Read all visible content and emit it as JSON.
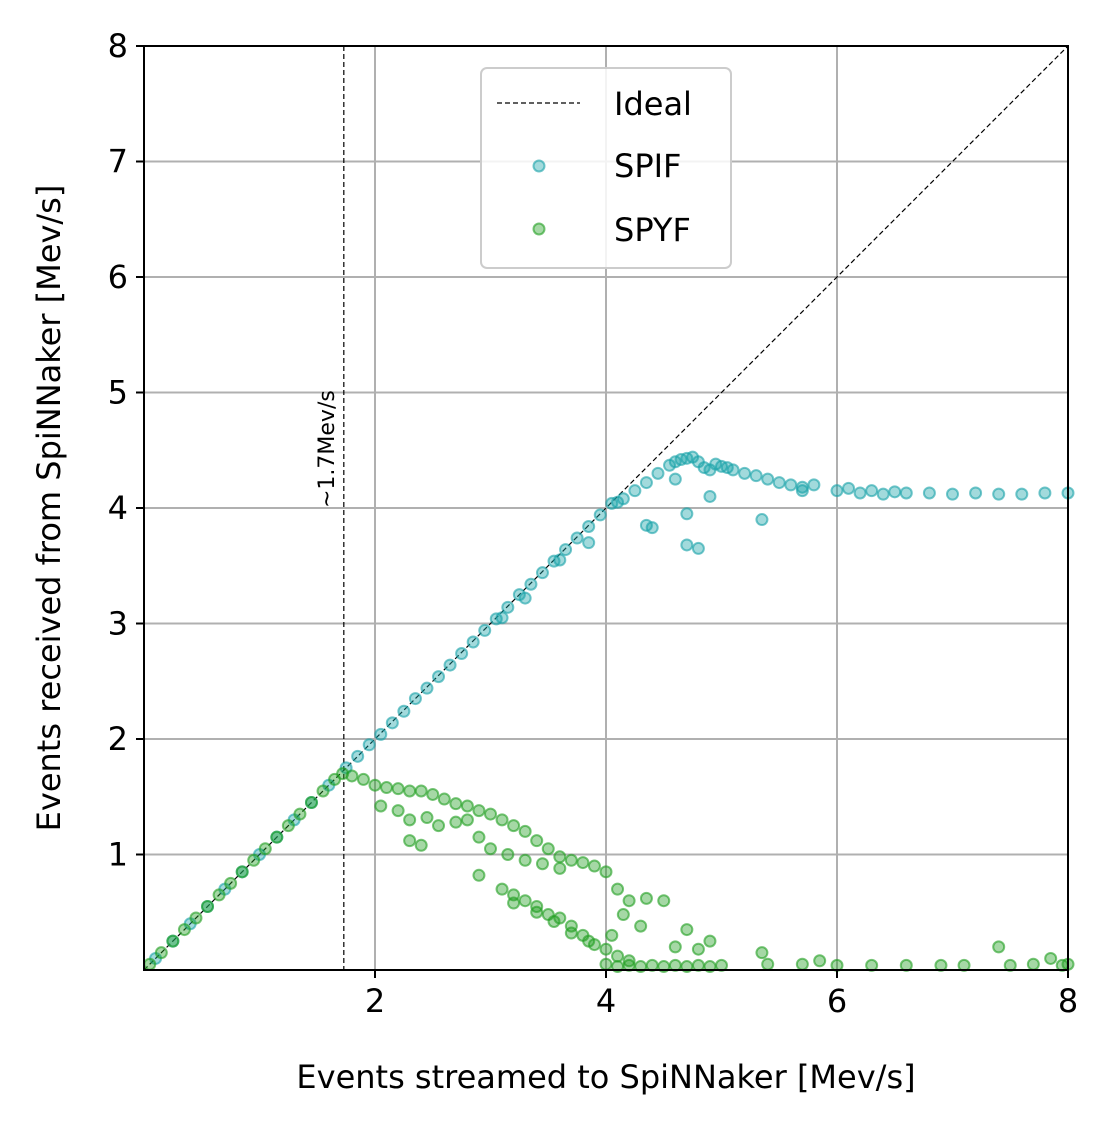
{
  "chart_data": {
    "type": "scatter",
    "title": "",
    "xlabel": "Events streamed to SpiNNaker [Mev/s]",
    "ylabel": "Events received from SpiNNaker [Mev/s]",
    "xlim": [
      0,
      8
    ],
    "ylim": [
      0,
      8
    ],
    "x_ticks": [
      2,
      4,
      6,
      8
    ],
    "y_ticks": [
      1,
      2,
      3,
      4,
      5,
      6,
      7,
      8
    ],
    "grid": true,
    "legend_position": "top-center",
    "annotation": {
      "text": "~1.7Mev/s",
      "x": 1.73
    },
    "series": [
      {
        "name": "Ideal",
        "kind": "line",
        "style": "dashed",
        "color": "#000000",
        "points": [
          [
            0,
            0
          ],
          [
            8,
            8
          ]
        ]
      },
      {
        "name": "SPIF",
        "kind": "scatter",
        "color": "#17a2a8",
        "points": [
          [
            0.1,
            0.1
          ],
          [
            0.25,
            0.25
          ],
          [
            0.4,
            0.4
          ],
          [
            0.55,
            0.55
          ],
          [
            0.7,
            0.7
          ],
          [
            0.85,
            0.85
          ],
          [
            1.0,
            1.0
          ],
          [
            1.15,
            1.15
          ],
          [
            1.3,
            1.3
          ],
          [
            1.45,
            1.45
          ],
          [
            1.6,
            1.6
          ],
          [
            1.75,
            1.75
          ],
          [
            1.85,
            1.85
          ],
          [
            1.95,
            1.95
          ],
          [
            2.05,
            2.04
          ],
          [
            2.15,
            2.14
          ],
          [
            2.25,
            2.24
          ],
          [
            2.35,
            2.35
          ],
          [
            2.45,
            2.44
          ],
          [
            2.55,
            2.54
          ],
          [
            2.65,
            2.64
          ],
          [
            2.75,
            2.74
          ],
          [
            2.85,
            2.84
          ],
          [
            2.95,
            2.94
          ],
          [
            3.05,
            3.04
          ],
          [
            3.15,
            3.14
          ],
          [
            3.25,
            3.25
          ],
          [
            3.35,
            3.34
          ],
          [
            3.45,
            3.44
          ],
          [
            3.55,
            3.54
          ],
          [
            3.65,
            3.64
          ],
          [
            3.75,
            3.74
          ],
          [
            3.85,
            3.84
          ],
          [
            3.95,
            3.94
          ],
          [
            4.05,
            4.04
          ],
          [
            3.1,
            3.05
          ],
          [
            3.3,
            3.22
          ],
          [
            3.6,
            3.55
          ],
          [
            3.85,
            3.7
          ],
          [
            4.1,
            4.05
          ],
          [
            4.15,
            4.08
          ],
          [
            4.25,
            4.15
          ],
          [
            4.35,
            4.22
          ],
          [
            4.45,
            4.3
          ],
          [
            4.55,
            4.37
          ],
          [
            4.6,
            4.4
          ],
          [
            4.65,
            4.42
          ],
          [
            4.7,
            4.43
          ],
          [
            4.75,
            4.44
          ],
          [
            4.8,
            4.4
          ],
          [
            4.85,
            4.35
          ],
          [
            4.9,
            4.33
          ],
          [
            4.95,
            4.38
          ],
          [
            5.0,
            4.36
          ],
          [
            5.05,
            4.35
          ],
          [
            5.1,
            4.33
          ],
          [
            5.2,
            4.3
          ],
          [
            5.3,
            4.28
          ],
          [
            5.4,
            4.25
          ],
          [
            5.5,
            4.22
          ],
          [
            5.6,
            4.2
          ],
          [
            5.7,
            4.18
          ],
          [
            5.8,
            4.2
          ],
          [
            6.0,
            4.15
          ],
          [
            6.1,
            4.17
          ],
          [
            6.2,
            4.13
          ],
          [
            6.3,
            4.15
          ],
          [
            6.4,
            4.12
          ],
          [
            6.5,
            4.14
          ],
          [
            6.6,
            4.13
          ],
          [
            6.8,
            4.13
          ],
          [
            7.0,
            4.12
          ],
          [
            7.2,
            4.13
          ],
          [
            7.4,
            4.12
          ],
          [
            7.6,
            4.12
          ],
          [
            7.8,
            4.13
          ],
          [
            8.0,
            4.13
          ],
          [
            4.35,
            3.85
          ],
          [
            4.4,
            3.83
          ],
          [
            4.7,
            3.95
          ],
          [
            4.7,
            3.68
          ],
          [
            4.8,
            3.65
          ],
          [
            4.9,
            4.1
          ],
          [
            5.35,
            3.9
          ],
          [
            4.6,
            4.25
          ],
          [
            5.7,
            4.15
          ]
        ]
      },
      {
        "name": "SPYF",
        "kind": "scatter",
        "color": "#1f9e1f",
        "points": [
          [
            0.05,
            0.05
          ],
          [
            0.15,
            0.15
          ],
          [
            0.25,
            0.25
          ],
          [
            0.35,
            0.35
          ],
          [
            0.45,
            0.45
          ],
          [
            0.55,
            0.55
          ],
          [
            0.65,
            0.65
          ],
          [
            0.75,
            0.75
          ],
          [
            0.85,
            0.85
          ],
          [
            0.95,
            0.95
          ],
          [
            1.05,
            1.05
          ],
          [
            1.15,
            1.15
          ],
          [
            1.25,
            1.25
          ],
          [
            1.35,
            1.35
          ],
          [
            1.45,
            1.45
          ],
          [
            1.55,
            1.55
          ],
          [
            1.65,
            1.65
          ],
          [
            1.72,
            1.7
          ],
          [
            1.8,
            1.68
          ],
          [
            1.9,
            1.65
          ],
          [
            2.0,
            1.6
          ],
          [
            2.1,
            1.58
          ],
          [
            2.2,
            1.57
          ],
          [
            2.3,
            1.55
          ],
          [
            2.4,
            1.55
          ],
          [
            2.5,
            1.52
          ],
          [
            2.6,
            1.48
          ],
          [
            2.7,
            1.44
          ],
          [
            2.8,
            1.42
          ],
          [
            2.9,
            1.38
          ],
          [
            3.0,
            1.35
          ],
          [
            3.1,
            1.3
          ],
          [
            3.2,
            1.25
          ],
          [
            3.3,
            1.2
          ],
          [
            3.4,
            1.12
          ],
          [
            3.5,
            1.05
          ],
          [
            3.6,
            0.98
          ],
          [
            3.7,
            0.95
          ],
          [
            3.8,
            0.93
          ],
          [
            3.9,
            0.9
          ],
          [
            4.0,
            0.85
          ],
          [
            4.1,
            0.7
          ],
          [
            4.2,
            0.6
          ],
          [
            2.05,
            1.42
          ],
          [
            2.2,
            1.38
          ],
          [
            2.3,
            1.3
          ],
          [
            2.45,
            1.32
          ],
          [
            2.55,
            1.25
          ],
          [
            2.7,
            1.28
          ],
          [
            2.8,
            1.3
          ],
          [
            2.9,
            1.15
          ],
          [
            3.0,
            1.05
          ],
          [
            3.15,
            1.0
          ],
          [
            3.3,
            0.95
          ],
          [
            3.45,
            0.92
          ],
          [
            3.6,
            0.88
          ],
          [
            2.3,
            1.12
          ],
          [
            2.4,
            1.08
          ],
          [
            2.9,
            0.82
          ],
          [
            3.1,
            0.7
          ],
          [
            3.2,
            0.65
          ],
          [
            3.3,
            0.6
          ],
          [
            3.4,
            0.55
          ],
          [
            3.5,
            0.48
          ],
          [
            3.6,
            0.45
          ],
          [
            3.7,
            0.38
          ],
          [
            3.8,
            0.3
          ],
          [
            3.9,
            0.22
          ],
          [
            4.0,
            0.18
          ],
          [
            4.1,
            0.12
          ],
          [
            4.2,
            0.08
          ],
          [
            3.2,
            0.58
          ],
          [
            3.4,
            0.5
          ],
          [
            3.55,
            0.42
          ],
          [
            3.7,
            0.32
          ],
          [
            3.85,
            0.25
          ],
          [
            4.05,
            0.3
          ],
          [
            4.15,
            0.48
          ],
          [
            4.3,
            0.38
          ],
          [
            4.35,
            0.62
          ],
          [
            4.5,
            0.6
          ],
          [
            4.6,
            0.2
          ],
          [
            4.7,
            0.35
          ],
          [
            4.8,
            0.18
          ],
          [
            4.9,
            0.25
          ],
          [
            4.0,
            0.05
          ],
          [
            4.1,
            0.03
          ],
          [
            4.2,
            0.04
          ],
          [
            4.3,
            0.03
          ],
          [
            4.4,
            0.04
          ],
          [
            4.5,
            0.03
          ],
          [
            4.6,
            0.04
          ],
          [
            4.7,
            0.03
          ],
          [
            4.8,
            0.04
          ],
          [
            4.9,
            0.03
          ],
          [
            5.0,
            0.04
          ],
          [
            5.35,
            0.15
          ],
          [
            5.4,
            0.05
          ],
          [
            5.7,
            0.05
          ],
          [
            5.85,
            0.08
          ],
          [
            6.0,
            0.04
          ],
          [
            6.3,
            0.04
          ],
          [
            6.6,
            0.04
          ],
          [
            6.9,
            0.04
          ],
          [
            7.1,
            0.04
          ],
          [
            7.4,
            0.2
          ],
          [
            7.5,
            0.04
          ],
          [
            7.7,
            0.05
          ],
          [
            7.85,
            0.1
          ],
          [
            7.95,
            0.04
          ],
          [
            8.0,
            0.05
          ]
        ]
      }
    ]
  }
}
